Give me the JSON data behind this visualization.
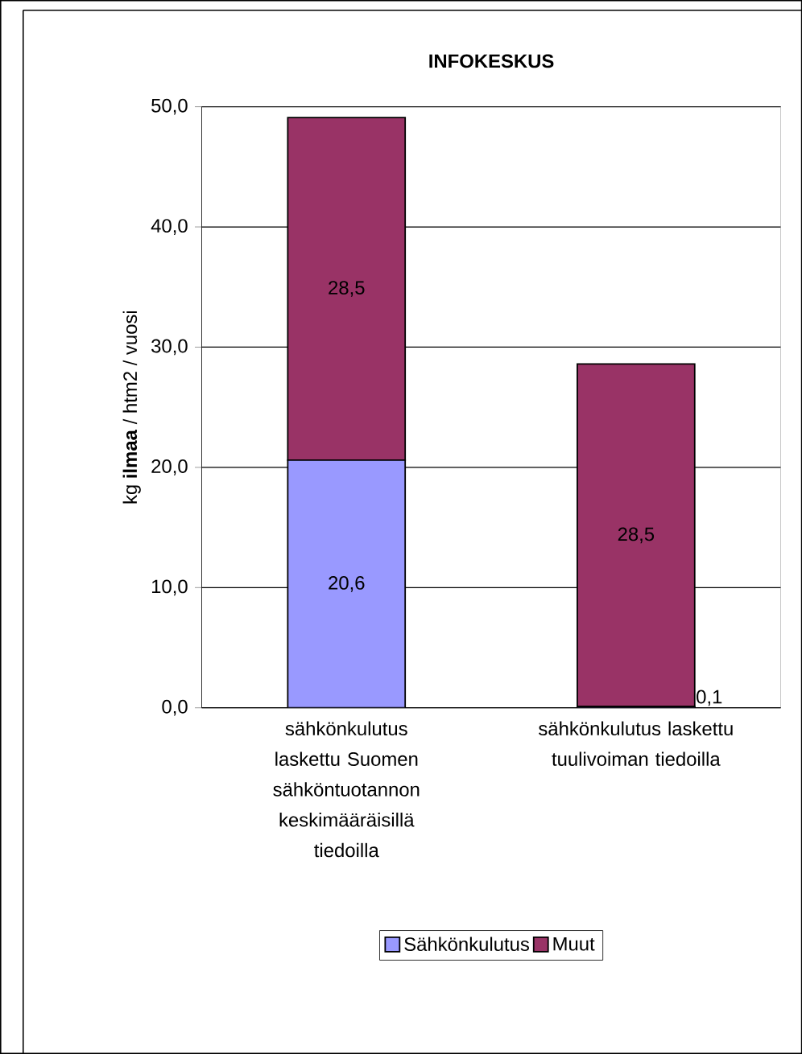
{
  "chart_data": {
    "type": "bar",
    "title": "INFOKESKUS",
    "ylabel": "kg **ilmaa** / htm2 / vuosi",
    "categories": [
      "sähkönkulutus laskettu Suomen sähköntuotannon keskimääräisillä tiedoilla",
      "sähkönkulutus laskettu tuulivoiman tiedoilla"
    ],
    "series": [
      {
        "name": "Sähkönkulutus",
        "color": "#9999ff",
        "values": [
          20.6,
          0.1
        ],
        "value_labels": [
          "20,6",
          "0,1"
        ]
      },
      {
        "name": "Muut",
        "color": "#993366",
        "values": [
          28.5,
          28.5
        ],
        "value_labels": [
          "28,5",
          "28,5"
        ]
      }
    ],
    "stacked": true,
    "ylim": [
      0,
      50
    ],
    "yticks": [
      {
        "value": 0,
        "label": "0,0"
      },
      {
        "value": 10,
        "label": "10,0"
      },
      {
        "value": 20,
        "label": "20,0"
      },
      {
        "value": 30,
        "label": "30,0"
      },
      {
        "value": 40,
        "label": "40,0"
      },
      {
        "value": 50,
        "label": "50,0"
      }
    ],
    "grid": "y",
    "legend": "bottom"
  }
}
